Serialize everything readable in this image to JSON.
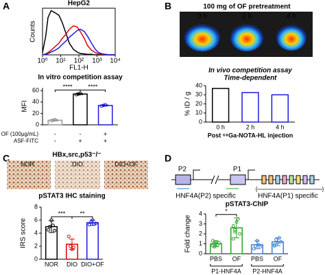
{
  "panel_labels": [
    "A",
    "B",
    "C",
    "D"
  ],
  "panel_b": {
    "header": "100 mg of OF pretreatment",
    "image_labels": [
      "0 h",
      "2 h",
      "4 h"
    ]
  },
  "panel_c": {
    "header": "HBx,src,p53⁻/⁻",
    "image_labels": [
      "NOR",
      "DIO",
      "DIO+OF"
    ]
  },
  "panel_d": {
    "promoters": [
      "P2",
      "P1"
    ],
    "specific_labels": [
      "HNF4A(P2) specific",
      "HNF4A(P1) specific"
    ]
  },
  "chart_data": [
    {
      "type": "line",
      "title": "HepG2",
      "xlabel": "FL1-H",
      "ylabel": "Counts",
      "log_x": true,
      "x": [
        1,
        1.5,
        2,
        3,
        5,
        8,
        12,
        20,
        30,
        50,
        80,
        120,
        200,
        300,
        500,
        800,
        1200,
        2000,
        5000,
        10000
      ],
      "xlim": [
        1,
        10000
      ],
      "xticks": [
        {
          "value": 1,
          "label": "10⁰"
        },
        {
          "value": 10,
          "label": "10¹"
        },
        {
          "value": 100,
          "label": "10²"
        },
        {
          "value": 1000,
          "label": "10³"
        },
        {
          "value": 10000,
          "label": "10⁴"
        }
      ],
      "ylim": [
        0,
        100
      ],
      "series": [
        {
          "color": "#000000",
          "values": [
            5,
            40,
            80,
            95,
            90,
            85,
            70,
            45,
            25,
            12,
            6,
            3,
            2,
            1,
            1,
            0,
            0,
            0,
            0,
            0
          ]
        },
        {
          "color": "#e00000",
          "values": [
            0,
            2,
            5,
            10,
            18,
            25,
            35,
            45,
            55,
            62,
            60,
            50,
            35,
            20,
            10,
            5,
            2,
            1,
            0,
            0
          ]
        },
        {
          "color": "#1a1adc",
          "values": [
            0,
            1,
            3,
            6,
            10,
            15,
            22,
            30,
            38,
            45,
            52,
            55,
            50,
            40,
            25,
            12,
            5,
            2,
            0,
            0
          ]
        }
      ]
    },
    {
      "type": "bar",
      "title": "In vitro competition assay",
      "ylabel": "MFI",
      "categories": [
        null,
        null,
        null
      ],
      "values": [
        8,
        54,
        34
      ],
      "errors": [
        1.5,
        1,
        1
      ],
      "points": [
        [
          7,
          8,
          9
        ],
        [
          53,
          54,
          55
        ],
        [
          33,
          34,
          35
        ]
      ],
      "colors": [
        "#999999",
        "#000000",
        "#1a1adc"
      ],
      "ylim": [
        0,
        65
      ],
      "yticks": [
        0,
        20,
        40,
        60
      ],
      "annotations": [
        "****",
        "****"
      ],
      "conditions": [
        {
          "name": "OF (100μg/mL)",
          "values": [
            "-",
            "-",
            "+"
          ]
        },
        {
          "name": "ASF-FITC",
          "values": [
            "-",
            "+",
            "+"
          ]
        }
      ]
    },
    {
      "type": "bar",
      "title": "In vivo competition assay",
      "subtitle": "Time-dependent",
      "ylabel": "% ID / g",
      "xlabel": "Post ⁶⁸Ga-NOTA-HL injection",
      "categories": [
        "0 h",
        "2 h",
        "4 h"
      ],
      "values": [
        37,
        32.5,
        30
      ],
      "colors": [
        "#000000",
        "#1a1adc",
        "#1a1adc"
      ],
      "ylim": [
        0,
        40
      ],
      "yticks": [
        0,
        10,
        20,
        30,
        40
      ]
    },
    {
      "type": "bar",
      "title": "pSTAT3 IHC staining",
      "ylabel": "IRS score",
      "categories": [
        "NOR",
        "DIO",
        "DIO+OF"
      ],
      "values": [
        5,
        2.3,
        5.6
      ],
      "errors": [
        0.9,
        0.8,
        0.4
      ],
      "points": [
        [
          4.5,
          5,
          6,
          5.2,
          4.4
        ],
        [
          3.5,
          2,
          1.5,
          1.8
        ],
        [
          5.3,
          5.7,
          6,
          5.4,
          5.5
        ]
      ],
      "colors": [
        "#000000",
        "#e00000",
        "#1a1adc"
      ],
      "ylim": [
        0,
        8
      ],
      "yticks": [
        0,
        2,
        4,
        6,
        8
      ],
      "annotations": [
        "***",
        "**"
      ]
    },
    {
      "type": "bar",
      "title": "pSTAT3-ChIP",
      "ylabel": "Fold change",
      "categories": [
        "PBS",
        "OF",
        "PBS",
        "OF"
      ],
      "groups": [
        "P1-HNF4A",
        "P2-HNF4A"
      ],
      "values": [
        1,
        2.6,
        0.9,
        1.2
      ],
      "errors": [
        0.3,
        1.0,
        0.4,
        0.4
      ],
      "points": [
        [
          0.8,
          1,
          1.2,
          0.9,
          1.1,
          1.3,
          0.7
        ],
        [
          1.5,
          2.2,
          3.2,
          3.5,
          2.0,
          2.8,
          2.4
        ],
        [
          0.5,
          0.8,
          1.3,
          0.9,
          0.7
        ],
        [
          0.9,
          1.4,
          1.1,
          1.6,
          1.2,
          0.8
        ]
      ],
      "colors": [
        "#2ca02c",
        "#2ca02c",
        "#3a7fd5",
        "#3a7fd5"
      ],
      "ylim": [
        0,
        4
      ],
      "yticks": [
        0,
        1,
        2,
        3,
        4
      ],
      "annotations": [
        "*"
      ]
    }
  ]
}
